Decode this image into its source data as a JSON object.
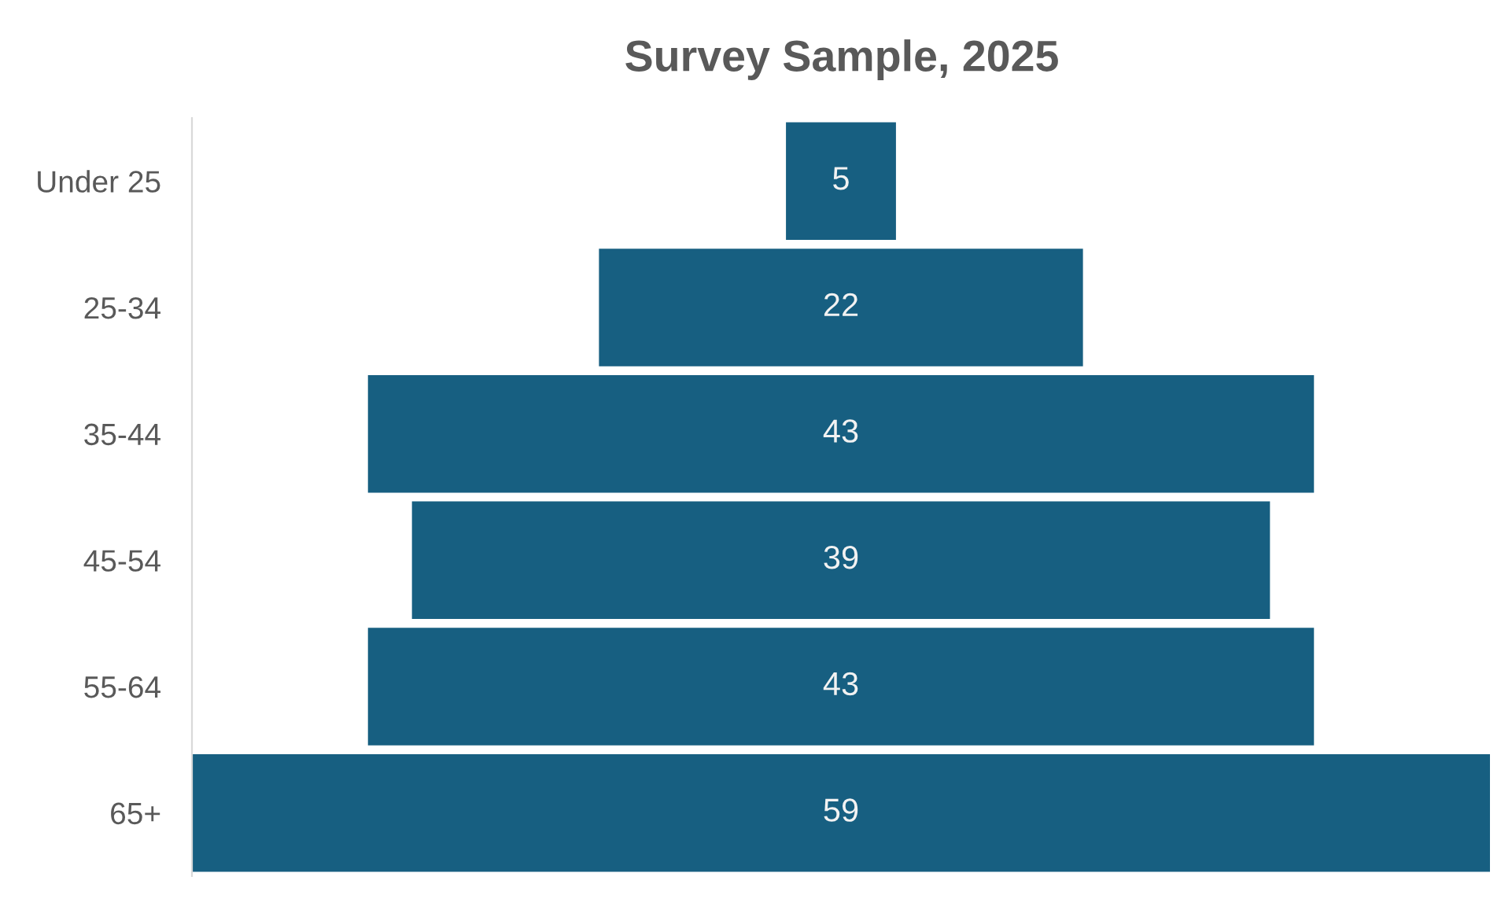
{
  "chart_data": {
    "type": "other",
    "title": "Survey Sample, 2025",
    "categories": [
      "Under 25",
      "25-34",
      "35-44",
      "45-54",
      "55-64",
      "65+"
    ],
    "values": [
      5,
      22,
      43,
      39,
      43,
      59
    ],
    "color": "#175f81",
    "data_labels": true
  }
}
